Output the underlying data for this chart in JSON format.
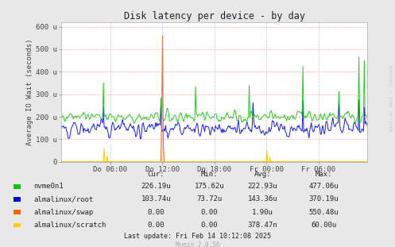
{
  "title": "Disk latency per device - by day",
  "ylabel": "Average IO Wait (seconds)",
  "background_color": "#e8e8e8",
  "plot_bg_color": "#ffffff",
  "grid_color_h": "#ff9999",
  "grid_color_v": "#9999ff",
  "ylim": [
    0,
    620
  ],
  "yticks": [
    0,
    100,
    200,
    300,
    400,
    500,
    600
  ],
  "ytick_labels": [
    "0",
    "100 u",
    "200 u",
    "300 u",
    "400 u",
    "500 u",
    "600 u"
  ],
  "xtick_labels": [
    "Do 06:00",
    "Do 12:00",
    "Do 18:00",
    "Fr 00:00",
    "Fr 06:00"
  ],
  "xtick_positions": [
    0.16,
    0.33,
    0.5,
    0.67,
    0.84
  ],
  "colors": {
    "nvme0n1": "#00cc00",
    "almalinux/root": "#0000ff",
    "almalinux/swap": "#ff6600",
    "almalinux/scratch": "#ffcc00"
  },
  "legend_items": [
    {
      "label": "nvme0n1",
      "color": "#00cc00"
    },
    {
      "label": "almalinux/root",
      "color": "#0000ff"
    },
    {
      "label": "almalinux/swap",
      "color": "#ff6600"
    },
    {
      "label": "almalinux/scratch",
      "color": "#ffcc00"
    }
  ],
  "stats_headers": [
    "Cur:",
    "Min:",
    "Avg:",
    "Max:"
  ],
  "stats_rows": [
    [
      "nvme0n1",
      "226.19u",
      "175.62u",
      "222.93u",
      "477.06u"
    ],
    [
      "almalinux/root",
      "103.74u",
      "73.72u",
      "143.36u",
      "370.19u"
    ],
    [
      "almalinux/swap",
      "0.00",
      "0.00",
      "1.90u",
      "550.48u"
    ],
    [
      "almalinux/scratch",
      "0.00",
      "0.00",
      "378.47n",
      "60.00u"
    ]
  ],
  "last_update": "Last update: Fri Feb 14 10:12:08 2025",
  "munin_version": "Munin 2.0.56",
  "rrdtool_label": "RRDTOOL / TOBI OETIKER",
  "seed": 42
}
